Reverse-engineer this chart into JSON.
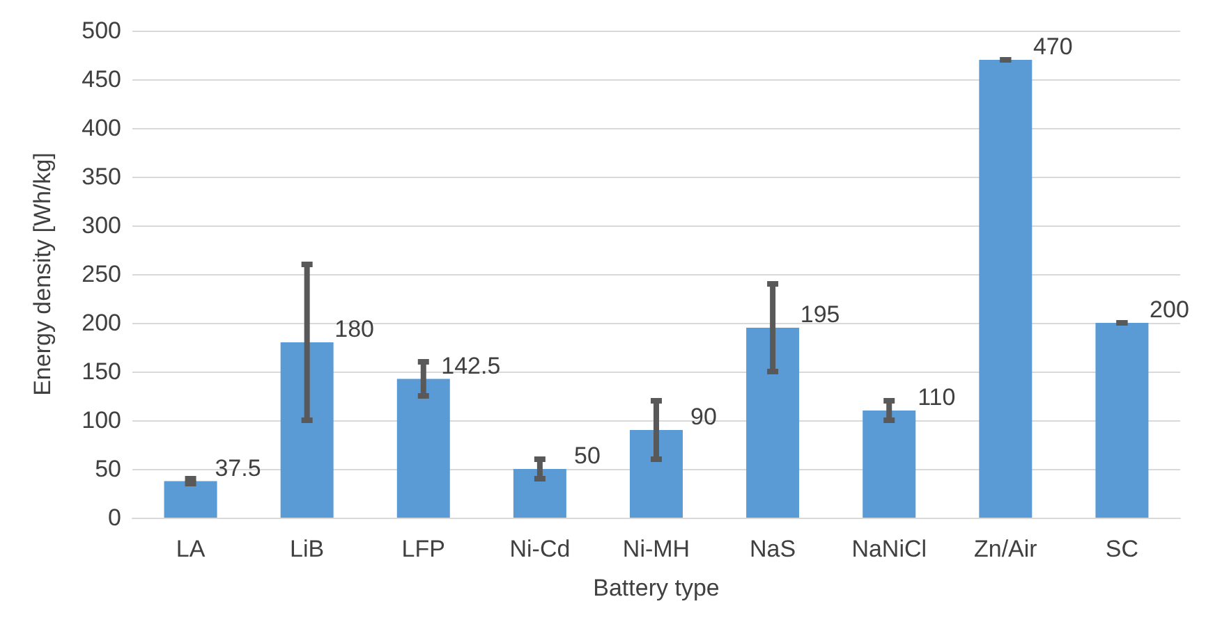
{
  "chart_data": {
    "type": "bar",
    "xlabel": "Battery type",
    "ylabel": "Energy density [Wh/kg]",
    "categories": [
      "LA",
      "LiB",
      "LFP",
      "Ni-Cd",
      "Ni-MH",
      "NaS",
      "NaNiCl",
      "Zn/Air",
      "SC"
    ],
    "values": [
      37.5,
      180,
      142.5,
      50,
      90,
      195,
      110,
      470,
      200
    ],
    "errors": [
      [
        35,
        40
      ],
      [
        100,
        260
      ],
      [
        125,
        160
      ],
      [
        40,
        60
      ],
      [
        60,
        120
      ],
      [
        150,
        240
      ],
      [
        100,
        120
      ],
      [
        470,
        470
      ],
      [
        200,
        200
      ]
    ],
    "color": "#5b9bd5",
    "ylim": [
      0,
      500
    ],
    "yticks": [
      0,
      50,
      100,
      150,
      200,
      250,
      300,
      350,
      400,
      450,
      500
    ],
    "grid": "y",
    "data_labels": true
  }
}
